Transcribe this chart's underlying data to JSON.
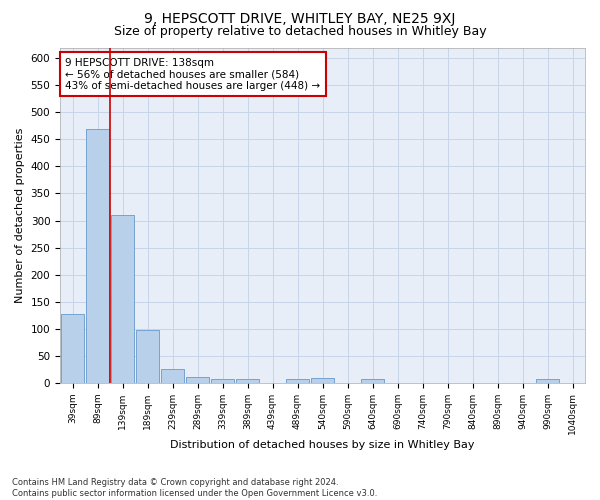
{
  "title_line1": "9, HEPSCOTT DRIVE, WHITLEY BAY, NE25 9XJ",
  "title_line2": "Size of property relative to detached houses in Whitley Bay",
  "xlabel": "Distribution of detached houses by size in Whitley Bay",
  "ylabel": "Number of detached properties",
  "bar_labels": [
    "39sqm",
    "89sqm",
    "139sqm",
    "189sqm",
    "239sqm",
    "289sqm",
    "339sqm",
    "389sqm",
    "439sqm",
    "489sqm",
    "540sqm",
    "590sqm",
    "640sqm",
    "690sqm",
    "740sqm",
    "790sqm",
    "840sqm",
    "890sqm",
    "940sqm",
    "990sqm",
    "1040sqm"
  ],
  "bar_values": [
    128,
    470,
    310,
    97,
    26,
    11,
    6,
    6,
    0,
    7,
    8,
    0,
    6,
    0,
    0,
    0,
    0,
    0,
    0,
    6,
    0
  ],
  "bar_color": "#b8d0ea",
  "bar_edge_color": "#6699cc",
  "grid_color": "#c8d4e8",
  "background_color": "#e8eef8",
  "vline_color": "#cc0000",
  "annotation_text": "9 HEPSCOTT DRIVE: 138sqm\n← 56% of detached houses are smaller (584)\n43% of semi-detached houses are larger (448) →",
  "annotation_box_color": "#ffffff",
  "annotation_box_edge": "#cc0000",
  "ylim": [
    0,
    620
  ],
  "yticks": [
    0,
    50,
    100,
    150,
    200,
    250,
    300,
    350,
    400,
    450,
    500,
    550,
    600
  ],
  "footer_text": "Contains HM Land Registry data © Crown copyright and database right 2024.\nContains public sector information licensed under the Open Government Licence v3.0.",
  "title_fontsize": 10,
  "subtitle_fontsize": 9,
  "bar_width": 0.9
}
